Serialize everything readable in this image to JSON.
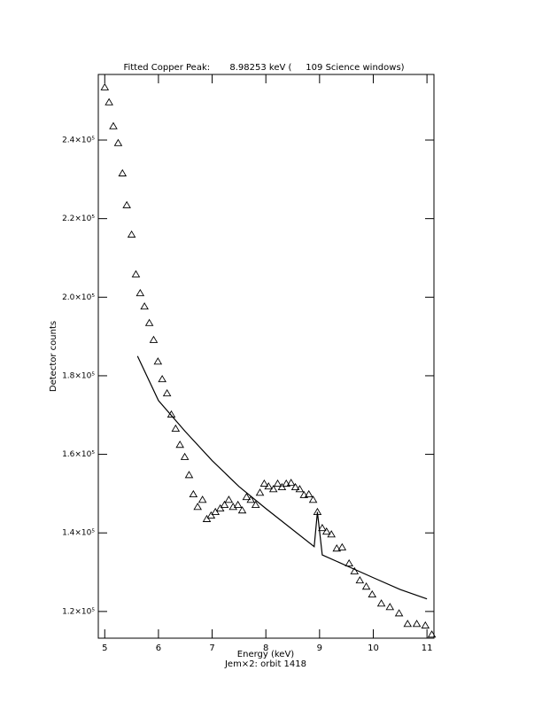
{
  "chart_data": {
    "type": "line",
    "title": "Fitted Copper Peak:       8.98253 keV (     109 Science windows)",
    "x_label": "Energy (keV)",
    "subtitle": "Jem×2: orbit 1418",
    "y_label": "Detector counts",
    "xlim": [
      4.88,
      11.13
    ],
    "ylim": [
      113200,
      256700
    ],
    "xticks": [
      5,
      6,
      7,
      8,
      9,
      10,
      11
    ],
    "yticks": [
      {
        "value": 120000,
        "label": "1.2×10⁵"
      },
      {
        "value": 140000,
        "label": "1.4×10⁵"
      },
      {
        "value": 160000,
        "label": "1.6×10⁵"
      },
      {
        "value": 180000,
        "label": "1.8×10⁵"
      },
      {
        "value": 200000,
        "label": "2.0×10⁵"
      },
      {
        "value": 220000,
        "label": "2.2×10⁵"
      },
      {
        "value": 240000,
        "label": "2.4×10⁵"
      }
    ],
    "series": [
      {
        "style": "triangles",
        "color": "#000000",
        "x": [
          5.0,
          5.08,
          5.16,
          5.25,
          5.33,
          5.41,
          5.5,
          5.58,
          5.66,
          5.74,
          5.83,
          5.91,
          5.99,
          6.07,
          6.16,
          6.24,
          6.32,
          6.4,
          6.49,
          6.57,
          6.65,
          6.73,
          6.82,
          6.9,
          6.98,
          7.06,
          7.15,
          7.23,
          7.31,
          7.39,
          7.48,
          7.56,
          7.64,
          7.72,
          7.81,
          7.89,
          7.97,
          8.05,
          8.14,
          8.22,
          8.3,
          8.38,
          8.47,
          8.55,
          8.63,
          8.71,
          8.8,
          8.88,
          8.96,
          9.05,
          9.13,
          9.22,
          9.32,
          9.42,
          9.55,
          9.65,
          9.75,
          9.87,
          9.98,
          10.15,
          10.31,
          10.48,
          10.64,
          10.81,
          10.97,
          11.09
        ],
        "values": [
          253400,
          249600,
          243500,
          239200,
          231500,
          223400,
          215900,
          205800,
          201000,
          197600,
          193400,
          189100,
          183600,
          179100,
          175500,
          170100,
          166500,
          162400,
          159300,
          154700,
          149800,
          146600,
          148400,
          143500,
          144400,
          145300,
          146200,
          147100,
          148400,
          146600,
          147100,
          145700,
          149100,
          148400,
          147100,
          150200,
          152500,
          151800,
          151100,
          152500,
          151600,
          152500,
          152700,
          151600,
          151100,
          149600,
          149800,
          148400,
          145300,
          141200,
          140300,
          139600,
          136000,
          136300,
          132200,
          130200,
          127900,
          126300,
          124300,
          122000,
          121100,
          119500,
          116800,
          116800,
          116400,
          114100
        ]
      },
      {
        "style": "line",
        "color": "#000000",
        "x": [
          5.61,
          6.0,
          6.5,
          7.0,
          7.5,
          8.0,
          8.9,
          8.96,
          9.05,
          10.0,
          10.5,
          11.0
        ],
        "values": [
          185000,
          173700,
          165800,
          158400,
          151800,
          146200,
          136500,
          145300,
          134400,
          128600,
          125600,
          123200
        ]
      }
    ]
  }
}
